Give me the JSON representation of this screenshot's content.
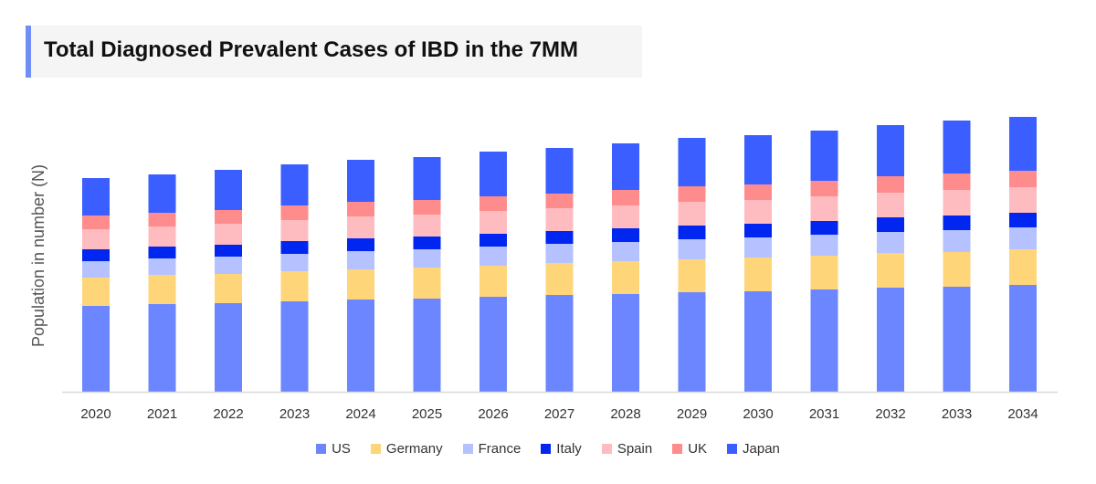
{
  "chart_data": {
    "type": "bar",
    "stacked": true,
    "title": "Total Diagnosed Prevalent Cases of IBD in the 7MM",
    "xlabel": "",
    "ylabel": "Population in number (N)",
    "y_tick_labels_shown": false,
    "note": "no y-axis values printed; values are relative estimates",
    "ylim": [
      0,
      320
    ],
    "grid": false,
    "legend_position": "bottom",
    "categories": [
      "2020",
      "2021",
      "2022",
      "2023",
      "2024",
      "2025",
      "2026",
      "2027",
      "2028",
      "2029",
      "2030",
      "2031",
      "2032",
      "2033",
      "2034"
    ],
    "series": [
      {
        "name": "US",
        "color": "#6b86ff",
        "values": [
          94,
          96,
          97,
          99,
          101,
          102,
          104,
          106,
          107,
          109,
          110,
          112,
          114,
          115,
          117
        ]
      },
      {
        "name": "Germany",
        "color": "#ffd57a",
        "values": [
          31,
          32,
          32,
          33,
          33,
          34,
          34,
          35,
          36,
          36,
          37,
          37,
          38,
          38,
          39
        ]
      },
      {
        "name": "France",
        "color": "#b5c2ff",
        "values": [
          18,
          18,
          19,
          19,
          20,
          20,
          21,
          21,
          21,
          22,
          22,
          23,
          23,
          24,
          24
        ]
      },
      {
        "name": "Italy",
        "color": "#0026f0",
        "values": [
          13,
          13,
          13,
          14,
          14,
          14,
          14,
          14,
          15,
          15,
          15,
          15,
          16,
          16,
          16
        ]
      },
      {
        "name": "Spain",
        "color": "#ffbcc0",
        "values": [
          22,
          22,
          23,
          23,
          24,
          24,
          25,
          25,
          25,
          26,
          26,
          27,
          27,
          28,
          28
        ]
      },
      {
        "name": "UK",
        "color": "#ff8c8c",
        "values": [
          15,
          15,
          15,
          16,
          16,
          16,
          16,
          16,
          17,
          17,
          17,
          17,
          18,
          18,
          18
        ]
      },
      {
        "name": "Japan",
        "color": "#3a5eff",
        "values": [
          41,
          42,
          44,
          45,
          46,
          47,
          49,
          50,
          51,
          53,
          54,
          55,
          56,
          58,
          59
        ]
      }
    ]
  }
}
